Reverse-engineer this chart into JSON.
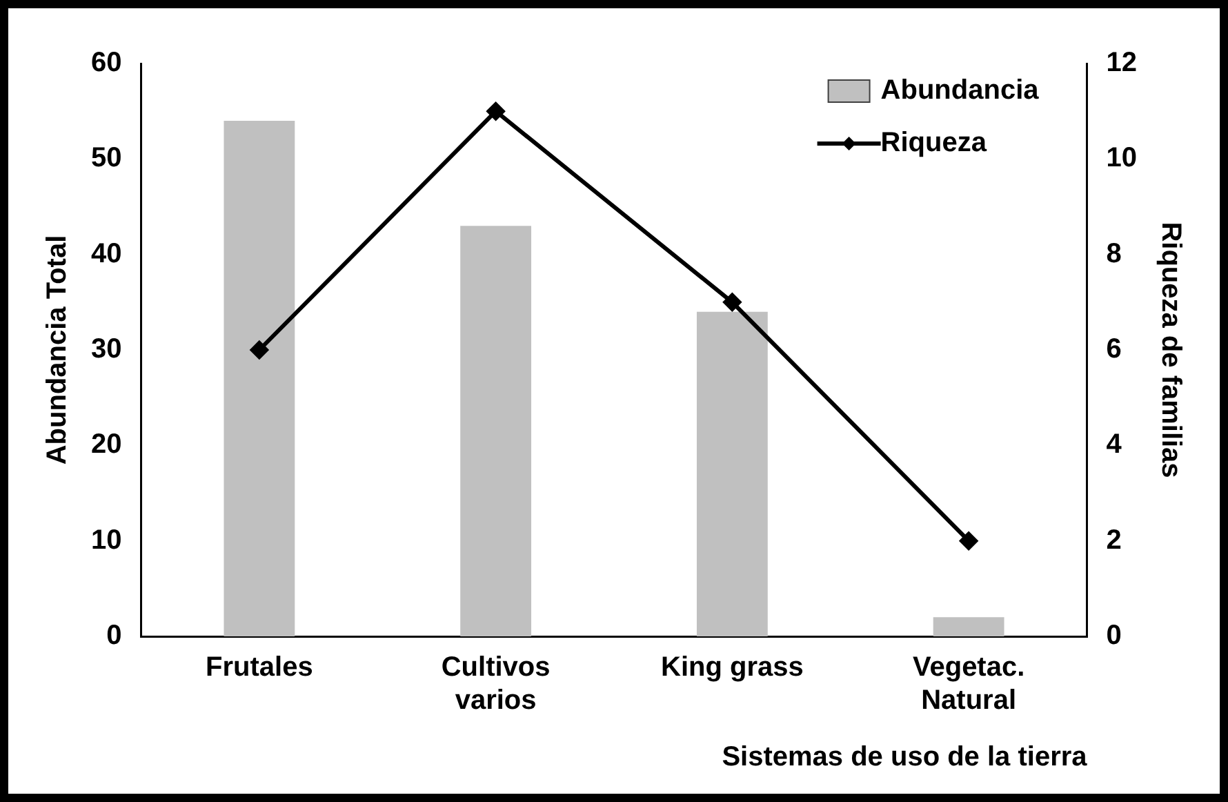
{
  "chart_data": {
    "type": "bar",
    "xlabel": "Sistemas de uso de la tierra",
    "ylabel": "Abundancia Total",
    "y2label": "Riqueza de familias",
    "categories": [
      "Frutales",
      "Cultivos\nvarios",
      "King grass",
      "Vegetac.\nNatural"
    ],
    "series": [
      {
        "name": "Abundancia",
        "color": "#c0c0c0",
        "values": [
          54,
          43,
          34,
          2
        ]
      },
      {
        "name": "Riqueza",
        "type": "line",
        "axis": "y2",
        "color": "#000000",
        "values": [
          6,
          11,
          7,
          2
        ]
      }
    ],
    "ylim": [
      0,
      60
    ],
    "yticks": [
      0,
      10,
      20,
      30,
      40,
      50,
      60
    ],
    "y2lim": [
      0,
      12
    ],
    "y2ticks": [
      0,
      2,
      4,
      6,
      8,
      10,
      12
    ],
    "grid": false,
    "legend": "top right",
    "marker": "diamond",
    "line_style": "solid"
  }
}
